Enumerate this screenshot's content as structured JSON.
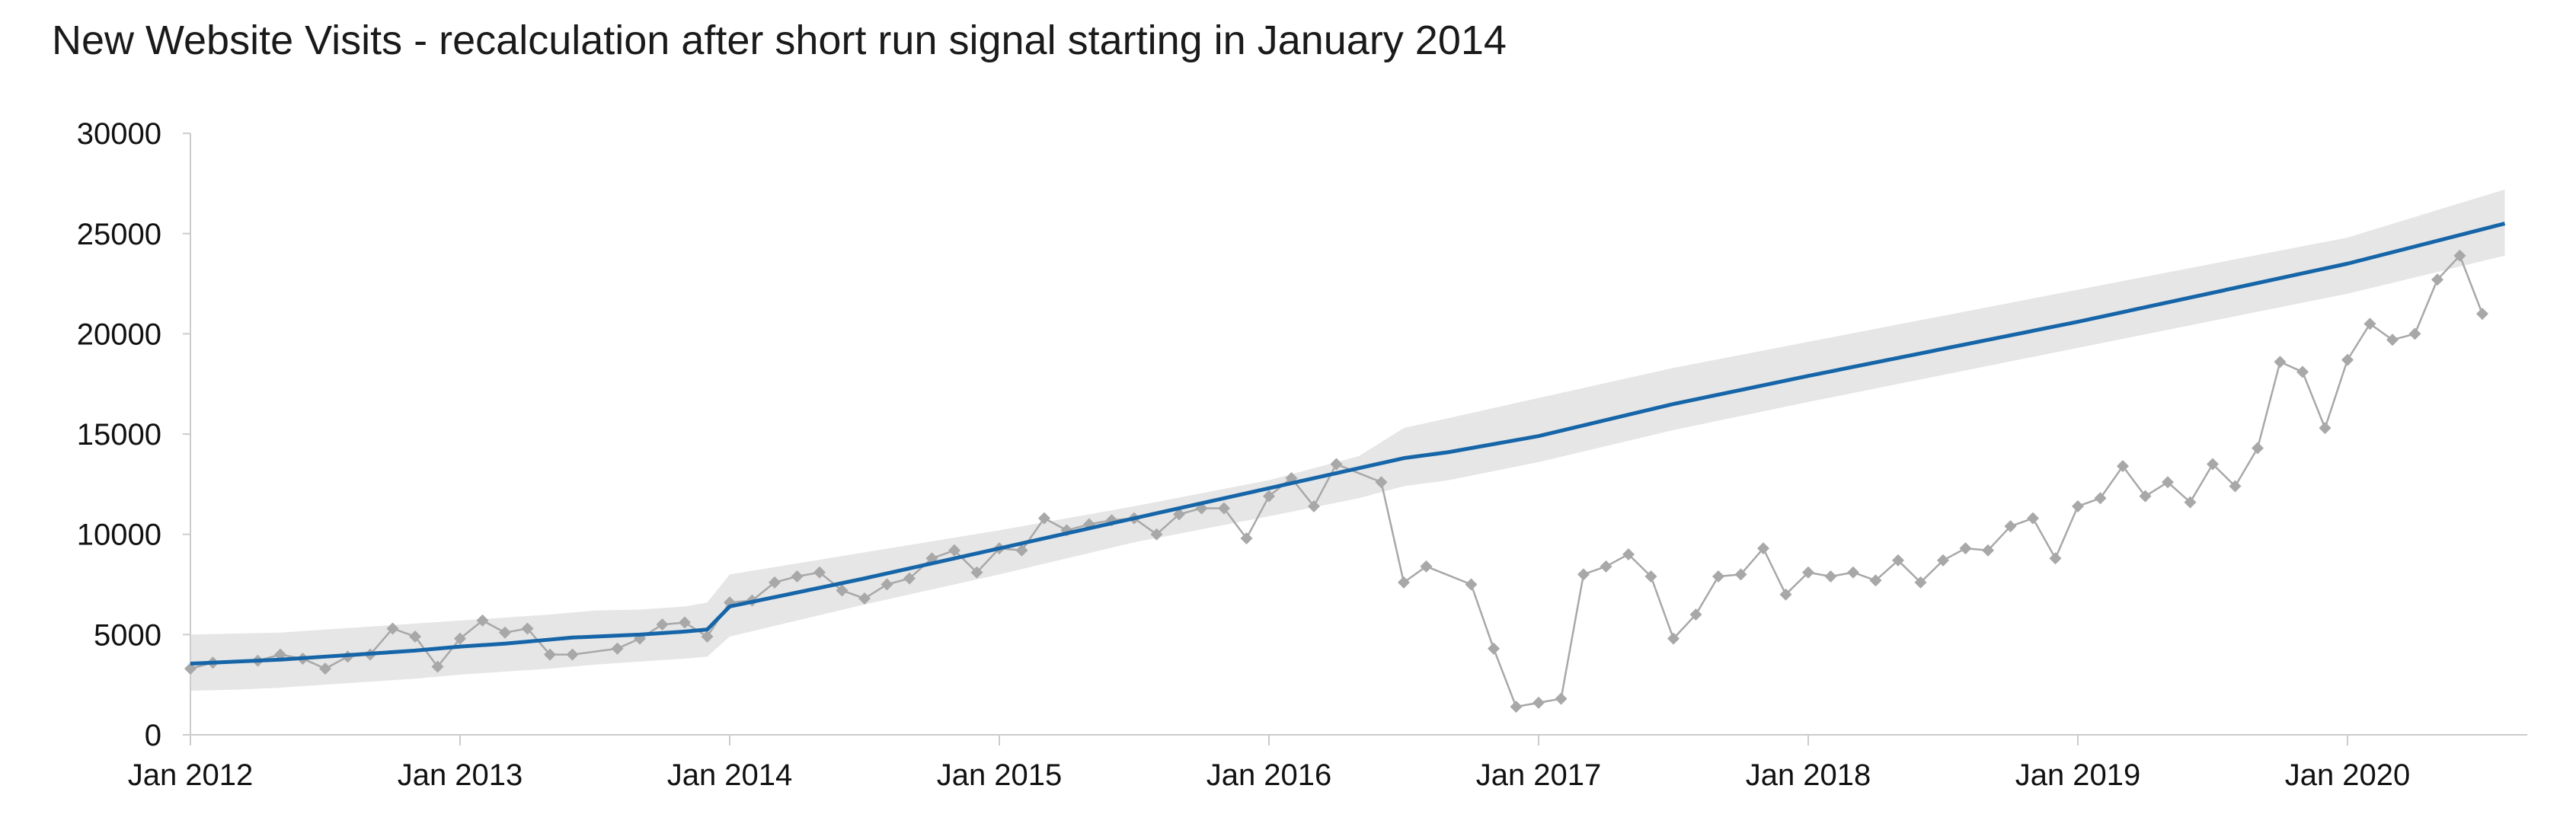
{
  "chart_data": {
    "type": "line",
    "title": "New Website Visits - recalculation after short run signal starting in January 2014",
    "xlabel": "",
    "ylabel": "",
    "xlim": [
      0,
      104
    ],
    "ylim": [
      0,
      30000
    ],
    "y_ticks": [
      "0",
      "5000",
      "10000",
      "15000",
      "20000",
      "25000",
      "30000"
    ],
    "x_ticks": [
      {
        "label": "Jan 2012",
        "month": 0
      },
      {
        "label": "Jan 2013",
        "month": 12
      },
      {
        "label": "Jan 2014",
        "month": 24
      },
      {
        "label": "Jan 2015",
        "month": 36
      },
      {
        "label": "Jan 2016",
        "month": 48
      },
      {
        "label": "Jan 2017",
        "month": 60
      },
      {
        "label": "Jan 2018",
        "month": 72
      },
      {
        "label": "Jan 2019",
        "month": 84
      },
      {
        "label": "Jan 2020",
        "month": 96
      }
    ],
    "grid": false,
    "colors": {
      "mean": "#1565a8",
      "data": "#a8a8a8",
      "band": "#e6e6e6",
      "axis": "#cccccc"
    },
    "series": [
      {
        "role": "limits-band",
        "upper": [
          [
            0,
            5000
          ],
          [
            2,
            5050
          ],
          [
            4,
            5100
          ],
          [
            6,
            5250
          ],
          [
            8,
            5400
          ],
          [
            10,
            5550
          ],
          [
            12,
            5700
          ],
          [
            14,
            5850
          ],
          [
            16,
            6000
          ],
          [
            17,
            6100
          ],
          [
            18,
            6200
          ],
          [
            20,
            6250
          ],
          [
            22,
            6400
          ],
          [
            23,
            6600
          ],
          [
            24,
            8000
          ],
          [
            30,
            9100
          ],
          [
            36,
            10200
          ],
          [
            42,
            11400
          ],
          [
            48,
            12700
          ],
          [
            52,
            13900
          ],
          [
            54,
            15300
          ],
          [
            56,
            15800
          ],
          [
            60,
            16800
          ],
          [
            66,
            18300
          ],
          [
            72,
            19600
          ],
          [
            84,
            22200
          ],
          [
            96,
            24800
          ],
          [
            103,
            27200
          ]
        ],
        "lower": [
          [
            0,
            2200
          ],
          [
            2,
            2250
          ],
          [
            4,
            2350
          ],
          [
            6,
            2500
          ],
          [
            8,
            2650
          ],
          [
            10,
            2800
          ],
          [
            12,
            3000
          ],
          [
            14,
            3150
          ],
          [
            16,
            3300
          ],
          [
            17,
            3400
          ],
          [
            18,
            3500
          ],
          [
            20,
            3650
          ],
          [
            22,
            3800
          ],
          [
            23,
            3900
          ],
          [
            24,
            4900
          ],
          [
            30,
            6500
          ],
          [
            36,
            8000
          ],
          [
            42,
            9600
          ],
          [
            48,
            10900
          ],
          [
            52,
            11800
          ],
          [
            54,
            12400
          ],
          [
            56,
            12700
          ],
          [
            60,
            13600
          ],
          [
            66,
            15200
          ],
          [
            72,
            16600
          ],
          [
            84,
            19300
          ],
          [
            96,
            22000
          ],
          [
            103,
            23900
          ]
        ]
      },
      {
        "role": "mean",
        "values": [
          [
            0,
            3550
          ],
          [
            2,
            3650
          ],
          [
            4,
            3750
          ],
          [
            6,
            3900
          ],
          [
            8,
            4050
          ],
          [
            10,
            4200
          ],
          [
            12,
            4400
          ],
          [
            14,
            4550
          ],
          [
            16,
            4750
          ],
          [
            17,
            4850
          ],
          [
            18,
            4900
          ],
          [
            20,
            5000
          ],
          [
            22,
            5150
          ],
          [
            23,
            5250
          ],
          [
            24,
            6400
          ],
          [
            30,
            7800
          ],
          [
            36,
            9300
          ],
          [
            42,
            10800
          ],
          [
            48,
            12300
          ],
          [
            52,
            13300
          ],
          [
            54,
            13800
          ],
          [
            56,
            14100
          ],
          [
            60,
            14900
          ],
          [
            66,
            16500
          ],
          [
            72,
            17900
          ],
          [
            84,
            20600
          ],
          [
            96,
            23500
          ],
          [
            103,
            25500
          ]
        ]
      },
      {
        "role": "data",
        "values": [
          [
            0,
            3300
          ],
          [
            1,
            3600
          ],
          [
            3,
            3700
          ],
          [
            4,
            4000
          ],
          [
            5,
            3800
          ],
          [
            6,
            3300
          ],
          [
            7,
            3900
          ],
          [
            8,
            4000
          ],
          [
            9,
            5300
          ],
          [
            10,
            4900
          ],
          [
            11,
            3400
          ],
          [
            12,
            4800
          ],
          [
            13,
            5700
          ],
          [
            14,
            5100
          ],
          [
            15,
            5300
          ],
          [
            16,
            4000
          ],
          [
            17,
            4000
          ],
          [
            19,
            4300
          ],
          [
            20,
            4800
          ],
          [
            21,
            5500
          ],
          [
            22,
            5600
          ],
          [
            23,
            4900
          ],
          [
            24,
            6600
          ],
          [
            25,
            6700
          ],
          [
            26,
            7600
          ],
          [
            27,
            7900
          ],
          [
            28,
            8100
          ],
          [
            29,
            7200
          ],
          [
            30,
            6800
          ],
          [
            31,
            7500
          ],
          [
            32,
            7800
          ],
          [
            33,
            8800
          ],
          [
            34,
            9200
          ],
          [
            35,
            8100
          ],
          [
            36,
            9300
          ],
          [
            37,
            9200
          ],
          [
            38,
            10800
          ],
          [
            39,
            10200
          ],
          [
            40,
            10500
          ],
          [
            41,
            10700
          ],
          [
            42,
            10800
          ],
          [
            43,
            10000
          ],
          [
            44,
            11000
          ],
          [
            45,
            11300
          ],
          [
            46,
            11300
          ],
          [
            47,
            9800
          ],
          [
            48,
            11900
          ],
          [
            49,
            12800
          ],
          [
            50,
            11400
          ],
          [
            51,
            13500
          ],
          [
            53,
            12600
          ],
          [
            54,
            7600
          ],
          [
            55,
            8400
          ],
          [
            57,
            7500
          ],
          [
            58,
            4300
          ],
          [
            59,
            1400
          ],
          [
            60,
            1600
          ],
          [
            61,
            1800
          ],
          [
            62,
            8000
          ],
          [
            63,
            8400
          ],
          [
            64,
            9000
          ],
          [
            65,
            7900
          ],
          [
            66,
            4800
          ],
          [
            67,
            6000
          ],
          [
            68,
            7900
          ],
          [
            69,
            8000
          ],
          [
            70,
            9300
          ],
          [
            71,
            7000
          ],
          [
            72,
            8100
          ],
          [
            73,
            7900
          ],
          [
            74,
            8100
          ],
          [
            75,
            7700
          ],
          [
            76,
            8700
          ],
          [
            77,
            7600
          ],
          [
            78,
            8700
          ],
          [
            79,
            9300
          ],
          [
            80,
            9200
          ],
          [
            81,
            10400
          ],
          [
            82,
            10800
          ],
          [
            83,
            8800
          ],
          [
            84,
            11400
          ],
          [
            85,
            11800
          ],
          [
            86,
            13400
          ],
          [
            87,
            11900
          ],
          [
            88,
            12600
          ],
          [
            89,
            11600
          ],
          [
            90,
            13500
          ],
          [
            91,
            12400
          ],
          [
            92,
            14300
          ],
          [
            93,
            18600
          ],
          [
            94,
            18100
          ],
          [
            95,
            15300
          ],
          [
            96,
            18700
          ],
          [
            97,
            20500
          ],
          [
            98,
            19700
          ],
          [
            99,
            20000
          ],
          [
            100,
            22700
          ],
          [
            101,
            23900
          ],
          [
            102,
            21000
          ]
        ]
      }
    ]
  }
}
